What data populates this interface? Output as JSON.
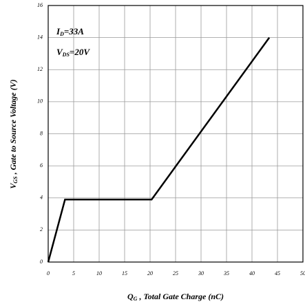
{
  "chart_data": {
    "type": "line",
    "x": [
      0,
      3.3,
      20.3,
      43.4
    ],
    "values": [
      0,
      3.9,
      3.9,
      14
    ],
    "color": "#000000",
    "xlim": [
      0,
      50
    ],
    "xticks": [
      0,
      5,
      10,
      15,
      20,
      25,
      30,
      35,
      40,
      45,
      50
    ],
    "ylim": [
      0,
      16
    ],
    "yticks": [
      0,
      2,
      4,
      6,
      8,
      10,
      12,
      14,
      16
    ],
    "grid": true,
    "x_label": {
      "main": "Q",
      "sub": "G",
      "rest": " , Total Gate Charge (nC)"
    },
    "y_label": {
      "main": "V",
      "sub": "GS",
      "rest": " , Gate to Source Voltage (V)"
    },
    "annotations": [
      {
        "main": "I",
        "sub": "D",
        "rest": "=33A"
      },
      {
        "main": "V",
        "sub": "DS",
        "rest": "=20V"
      }
    ]
  }
}
